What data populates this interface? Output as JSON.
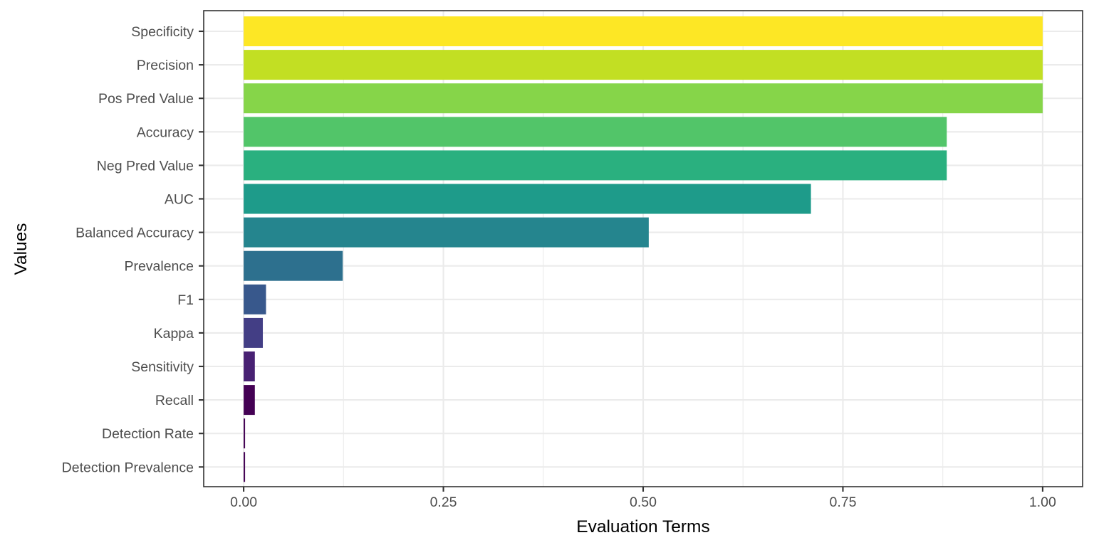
{
  "chart_data": {
    "type": "bar",
    "orientation": "horizontal",
    "xlabel": "Evaluation Terms",
    "ylabel": "Values",
    "xlim": [
      -0.05,
      1.05
    ],
    "x_ticks": [
      0.0,
      0.25,
      0.5,
      0.75,
      1.0
    ],
    "x_tick_labels": [
      "0.00",
      "0.25",
      "0.50",
      "0.75",
      "1.00"
    ],
    "grid": true,
    "legend": "none",
    "categories": [
      "Specificity",
      "Precision",
      "Pos Pred Value",
      "Accuracy",
      "Neg Pred Value",
      "AUC",
      "Balanced Accuracy",
      "Prevalence",
      "F1",
      "Kappa",
      "Sensitivity",
      "Recall",
      "Detection Rate",
      "Detection Prevalence"
    ],
    "values": [
      1.0,
      1.0,
      1.0,
      0.88,
      0.88,
      0.71,
      0.507,
      0.124,
      0.028,
      0.024,
      0.014,
      0.014,
      0.0015,
      0.0015
    ],
    "colors": [
      "#FDE725",
      "#C2DF23",
      "#86D549",
      "#52C569",
      "#2AB07F",
      "#1E9B8A",
      "#25858E",
      "#2D708E",
      "#38588C",
      "#433E85",
      "#482173",
      "#440154",
      "#440154",
      "#440154"
    ]
  }
}
